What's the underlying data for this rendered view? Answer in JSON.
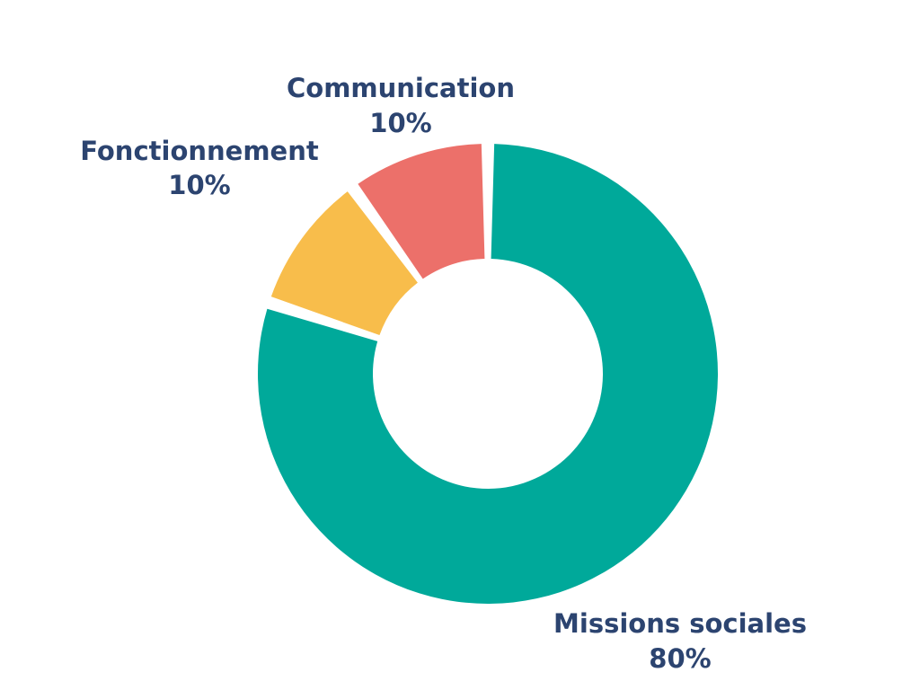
{
  "chart_data": {
    "type": "pie",
    "variant": "donut",
    "title": "",
    "slices": [
      {
        "label": "Missions sociales",
        "value": 80,
        "value_label": "80%",
        "color": "#00a99a"
      },
      {
        "label": "Fonctionnement",
        "value": 10,
        "value_label": "10%",
        "color": "#f8bd4b"
      },
      {
        "label": "Communication",
        "value": 10,
        "value_label": "10%",
        "color": "#ec706a"
      }
    ]
  }
}
